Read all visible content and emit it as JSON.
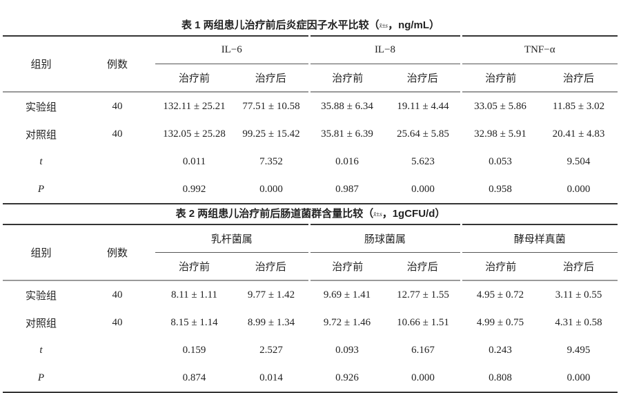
{
  "table1": {
    "caption": "表 1  两组患儿治疗前后炎症因子水平比较（",
    "caption_stat": "x̄±s",
    "caption_unit": "，ng/mL）",
    "col_group": "组别",
    "col_n": "例数",
    "groups": [
      "IL−6",
      "IL−8",
      "TNF−α"
    ],
    "sub": [
      "治疗前",
      "治疗后",
      "治疗前",
      "治疗后",
      "治疗前",
      "治疗后"
    ],
    "rows": [
      {
        "label": "实验组",
        "n": "40",
        "values": [
          "132.11 ± 25.21",
          "77.51 ± 10.58",
          "35.88 ± 6.34",
          "19.11 ± 4.44",
          "33.05 ± 5.86",
          "11.85 ± 3.02"
        ]
      },
      {
        "label": "对照组",
        "n": "40",
        "values": [
          "132.05 ± 25.28",
          "99.25 ± 15.42",
          "35.81 ± 6.39",
          "25.64 ± 5.85",
          "32.98 ± 5.91",
          "20.41 ± 4.83"
        ]
      },
      {
        "label": "t",
        "n": "",
        "values": [
          "0.011",
          "7.352",
          "0.016",
          "5.623",
          "0.053",
          "9.504"
        ]
      },
      {
        "label": "P",
        "n": "",
        "values": [
          "0.992",
          "0.000",
          "0.987",
          "0.000",
          "0.958",
          "0.000"
        ]
      }
    ]
  },
  "table2": {
    "caption": "表 2  两组患儿治疗前后肠道菌群含量比较（",
    "caption_stat": "x̄±s",
    "caption_unit": "，1gCFU/d）",
    "col_group": "组别",
    "col_n": "例数",
    "groups": [
      "乳杆菌属",
      "肠球菌属",
      "酵母样真菌"
    ],
    "sub": [
      "治疗前",
      "治疗后",
      "治疗前",
      "治疗后",
      "治疗前",
      "治疗后"
    ],
    "rows": [
      {
        "label": "实验组",
        "n": "40",
        "values": [
          "8.11 ± 1.11",
          "9.77 ± 1.42",
          "9.69 ± 1.41",
          "12.77 ± 1.55",
          "4.95 ± 0.72",
          "3.11 ± 0.55"
        ]
      },
      {
        "label": "对照组",
        "n": "40",
        "values": [
          "8.15 ± 1.14",
          "8.99 ± 1.34",
          "9.72 ± 1.46",
          "10.66 ± 1.51",
          "4.99 ± 0.75",
          "4.31 ± 0.58"
        ]
      },
      {
        "label": "t",
        "n": "",
        "values": [
          "0.159",
          "2.527",
          "0.093",
          "6.167",
          "0.243",
          "9.495"
        ]
      },
      {
        "label": "P",
        "n": "",
        "values": [
          "0.874",
          "0.014",
          "0.926",
          "0.000",
          "0.808",
          "0.000"
        ]
      }
    ]
  }
}
